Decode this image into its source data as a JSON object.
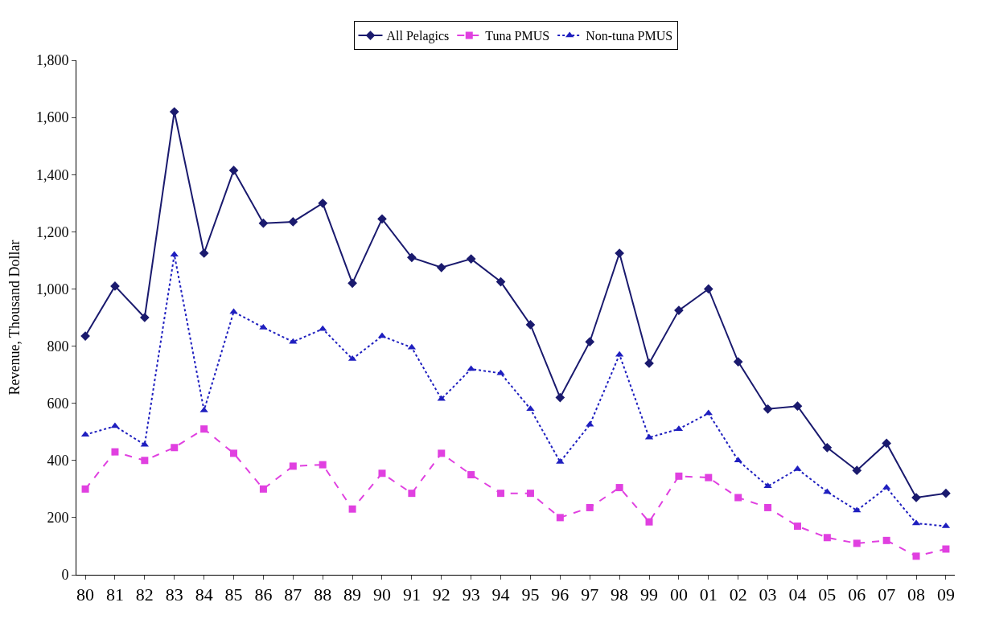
{
  "chart_data": {
    "type": "line",
    "ylabel": "Revenue, Thousand Dollar",
    "categories": [
      "80",
      "81",
      "82",
      "83",
      "84",
      "85",
      "86",
      "87",
      "88",
      "89",
      "90",
      "91",
      "92",
      "93",
      "94",
      "95",
      "96",
      "97",
      "98",
      "99",
      "00",
      "01",
      "02",
      "03",
      "04",
      "05",
      "06",
      "07",
      "08",
      "09"
    ],
    "series": [
      {
        "name": "All Pelagics",
        "color": "#1a1a6e",
        "marker": "diamond",
        "line_style": "solid",
        "values": [
          835,
          1010,
          900,
          1620,
          1125,
          1415,
          1230,
          1235,
          1300,
          1020,
          1245,
          1110,
          1075,
          1105,
          1025,
          875,
          620,
          815,
          1125,
          740,
          925,
          1000,
          745,
          580,
          590,
          445,
          365,
          460,
          270,
          285
        ]
      },
      {
        "name": "Tuna PMUS",
        "color": "#e040e0",
        "marker": "square",
        "line_style": "dashed",
        "values": [
          300,
          430,
          400,
          445,
          510,
          425,
          300,
          380,
          385,
          230,
          355,
          285,
          425,
          350,
          285,
          285,
          200,
          235,
          305,
          185,
          345,
          340,
          270,
          235,
          170,
          130,
          110,
          120,
          65,
          90
        ]
      },
      {
        "name": "Non-tuna PMUS",
        "color": "#1f1fbf",
        "marker": "triangle",
        "line_style": "dotted",
        "values": [
          490,
          520,
          455,
          1120,
          575,
          920,
          865,
          815,
          860,
          755,
          835,
          795,
          615,
          720,
          705,
          580,
          395,
          525,
          770,
          480,
          510,
          565,
          400,
          310,
          370,
          290,
          225,
          305,
          180,
          170
        ]
      }
    ],
    "ylim": [
      0,
      1800
    ],
    "yticks": [
      {
        "value": 0,
        "label": "0"
      },
      {
        "value": 200,
        "label": "200"
      },
      {
        "value": 400,
        "label": "400"
      },
      {
        "value": 600,
        "label": "600"
      },
      {
        "value": 800,
        "label": "800"
      },
      {
        "value": 1000,
        "label": "1,000"
      },
      {
        "value": 1200,
        "label": "1,200"
      },
      {
        "value": 1400,
        "label": "1,400"
      },
      {
        "value": 1600,
        "label": "1,600"
      },
      {
        "value": 1800,
        "label": "1,800"
      }
    ],
    "legend": "top"
  }
}
